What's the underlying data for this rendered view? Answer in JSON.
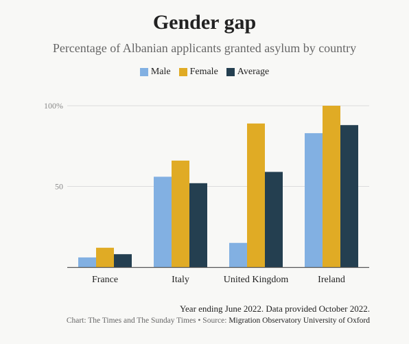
{
  "chart_data": {
    "type": "bar",
    "title": "Gender gap",
    "subtitle": "Percentage of Albanian applicants granted asylum by country",
    "categories": [
      "France",
      "Italy",
      "United Kingdom",
      "Ireland"
    ],
    "series": [
      {
        "name": "Male",
        "color": "#82b0e2",
        "values": [
          6,
          56,
          15,
          83
        ]
      },
      {
        "name": "Female",
        "color": "#e0ab25",
        "values": [
          12,
          66,
          89,
          100
        ]
      },
      {
        "name": "Average",
        "color": "#243f50",
        "values": [
          8,
          52,
          59,
          88
        ]
      }
    ],
    "ylim": [
      0,
      100
    ],
    "yticks": [
      {
        "value": 50,
        "label": "50"
      },
      {
        "value": 100,
        "label": "100%"
      }
    ],
    "grid": true,
    "legend": "top-center"
  },
  "footnote": "Year ending June 2022. Data provided October 2022.",
  "source": {
    "prefix": "Chart: The Times and The Sunday Times • Source: ",
    "name": "Migration Observatory University of Oxford"
  }
}
